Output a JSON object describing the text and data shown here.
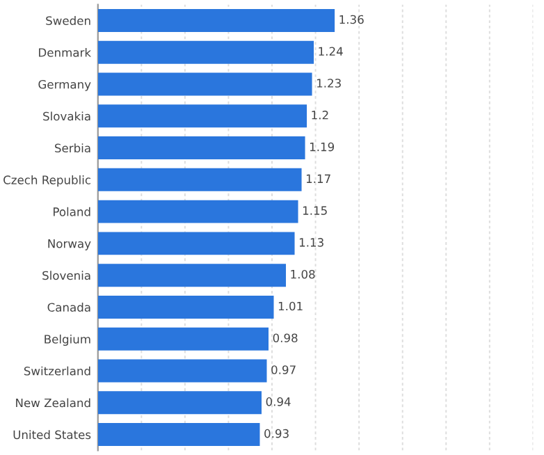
{
  "chart_data": {
    "type": "bar",
    "orientation": "horizontal",
    "categories": [
      "Sweden",
      "Denmark",
      "Germany",
      "Slovakia",
      "Serbia",
      "Czech Republic",
      "Poland",
      "Norway",
      "Slovenia",
      "Canada",
      "Belgium",
      "Switzerland",
      "New Zealand",
      "United States"
    ],
    "values": [
      1.36,
      1.24,
      1.23,
      1.2,
      1.19,
      1.17,
      1.15,
      1.13,
      1.08,
      1.01,
      0.98,
      0.97,
      0.94,
      0.93
    ],
    "color": "#2a76dd",
    "data_labels": true,
    "grid": "x",
    "xlim": [
      0,
      2.5
    ],
    "xticks": [
      {
        "value": 0,
        "label": null
      },
      {
        "value": 0.25,
        "label": null
      },
      {
        "value": 0.5,
        "label": null
      },
      {
        "value": 0.75,
        "label": null
      },
      {
        "value": 1,
        "label": null
      },
      {
        "value": 1.25,
        "label": null
      },
      {
        "value": 1.5,
        "label": null
      },
      {
        "value": 1.75,
        "label": null
      },
      {
        "value": 2,
        "label": null
      },
      {
        "value": 2.25,
        "label": null
      },
      {
        "value": 2.5,
        "label": null
      }
    ],
    "tick_labels": "y"
  }
}
